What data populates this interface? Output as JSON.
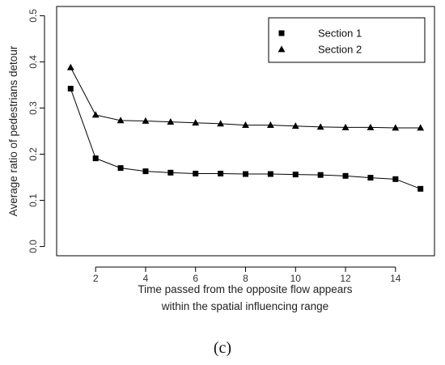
{
  "chart_data": {
    "type": "line",
    "x": [
      1,
      2,
      3,
      4,
      5,
      6,
      7,
      8,
      9,
      10,
      11,
      12,
      13,
      14,
      15
    ],
    "series": [
      {
        "name": "Section 1",
        "marker": "square",
        "values": [
          0.342,
          0.191,
          0.17,
          0.163,
          0.16,
          0.158,
          0.158,
          0.157,
          0.157,
          0.156,
          0.155,
          0.153,
          0.149,
          0.146,
          0.125
        ]
      },
      {
        "name": "Section 2",
        "marker": "triangle",
        "values": [
          0.388,
          0.285,
          0.273,
          0.272,
          0.27,
          0.268,
          0.266,
          0.263,
          0.263,
          0.261,
          0.259,
          0.258,
          0.258,
          0.257,
          0.257
        ]
      }
    ],
    "xticks": [
      2,
      4,
      6,
      8,
      10,
      12,
      14
    ],
    "yticks": [
      0.0,
      0.1,
      0.2,
      0.3,
      0.4,
      0.5
    ],
    "ytick_labels": [
      "0.0",
      "0.1",
      "0.2",
      "0.3",
      "0.4",
      "0.5"
    ],
    "xlim": [
      0.44,
      15.56
    ],
    "ylim": [
      -0.02,
      0.52
    ],
    "xlabel_line1": "Time passed from the opposite flow appears",
    "xlabel_line2": "within the spatial influencing range",
    "ylabel": "Average ratio of pedestrians detour",
    "legend_position": "top-right",
    "grid": false,
    "line_color": "#000000"
  },
  "caption": "(c)"
}
